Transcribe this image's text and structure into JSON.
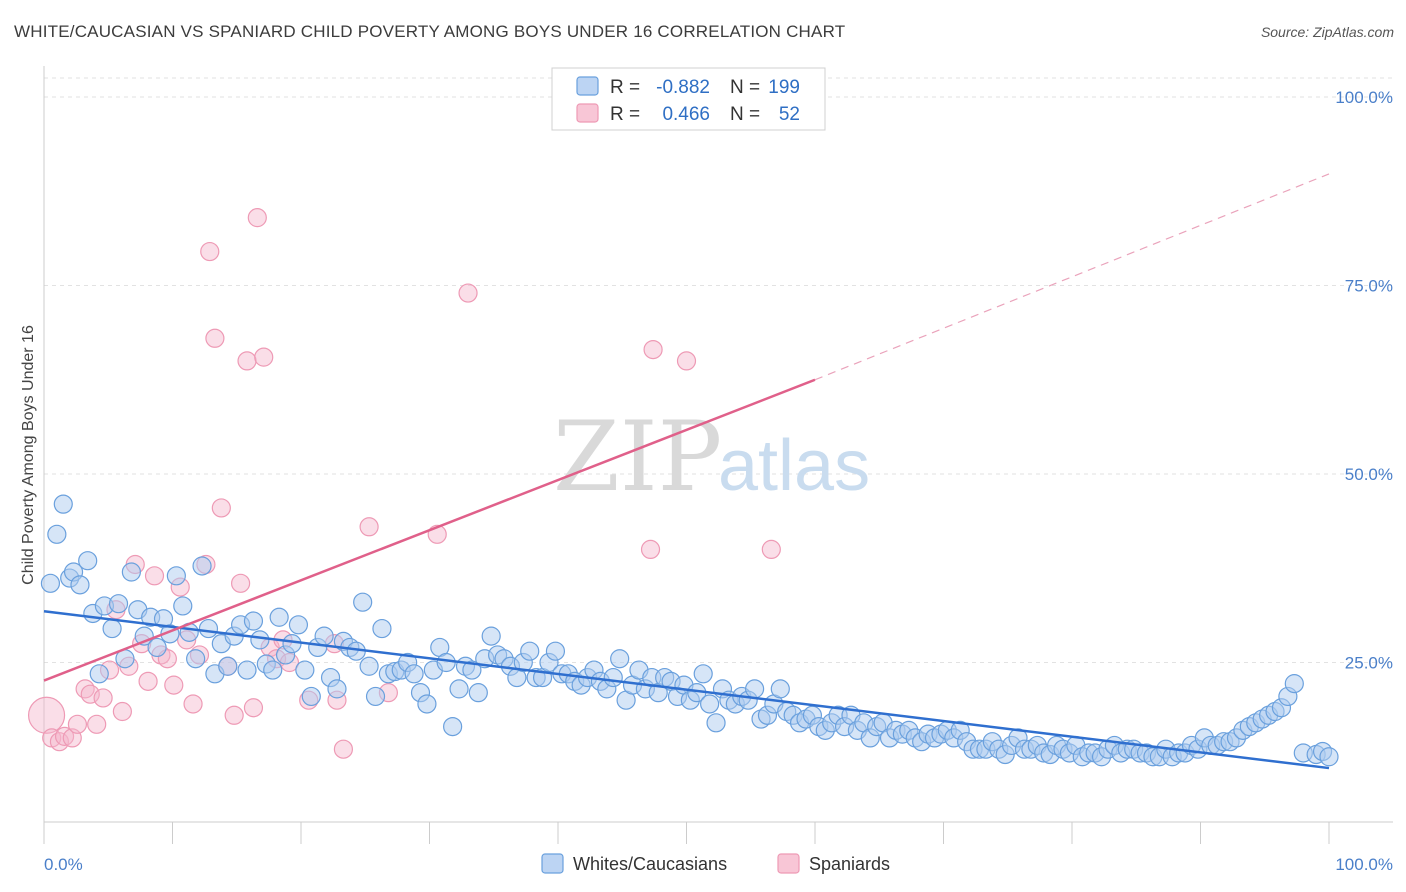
{
  "title": "WHITE/CAUCASIAN VS SPANIARD CHILD POVERTY AMONG BOYS UNDER 16 CORRELATION CHART",
  "source": "Source: ZipAtlas.com",
  "watermark": {
    "zip": "ZIP",
    "atlas": "atlas"
  },
  "colors": {
    "blue": "#6aa0dd",
    "blue_line": "#2f6fcf",
    "pink": "#ee9ab5",
    "pink_line": "#e0608a",
    "tick": "#4a7fc9"
  },
  "legend": {
    "rows": [
      {
        "r_label": "R =",
        "r_value": "-0.882",
        "n_label": "N =",
        "n_value": "199"
      },
      {
        "r_label": "R =",
        "r_value": "0.466",
        "n_label": "N =",
        "n_value": "52"
      }
    ]
  },
  "bottom_legend": {
    "blue": "Whites/Caucasians",
    "pink": "Spaniards"
  },
  "chart_data": {
    "type": "scatter",
    "title": "WHITE/CAUCASIAN VS SPANIARD CHILD POVERTY AMONG BOYS UNDER 16 CORRELATION CHART",
    "xlabel": "",
    "ylabel": "Child Poverty Among Boys Under 16",
    "xlim": [
      0,
      100
    ],
    "ylim": [
      0,
      105
    ],
    "x_tick_labels": [
      "0.0%",
      "100.0%"
    ],
    "y_ticks": [
      25,
      50,
      75,
      100
    ],
    "y_tick_labels": [
      "25.0%",
      "50.0%",
      "75.0%",
      "100.0%"
    ],
    "grid": true,
    "legend_position": "top-center",
    "series": [
      {
        "name": "Whites/Caucasians",
        "color": "#6aa0dd",
        "regression": {
          "x": [
            0,
            100
          ],
          "y": [
            31.8,
            11.0
          ]
        },
        "points": [
          [
            0.5,
            35.5
          ],
          [
            1.0,
            42
          ],
          [
            1.5,
            46
          ],
          [
            2,
            36.2
          ],
          [
            2.3,
            37
          ],
          [
            2.8,
            35.3
          ],
          [
            3.4,
            38.5
          ],
          [
            3.8,
            31.5
          ],
          [
            4.3,
            23.5
          ],
          [
            4.7,
            32.5
          ],
          [
            5.3,
            29.5
          ],
          [
            5.8,
            32.8
          ],
          [
            6.3,
            25.5
          ],
          [
            6.8,
            37
          ],
          [
            7.3,
            32
          ],
          [
            7.8,
            28.5
          ],
          [
            8.3,
            31
          ],
          [
            8.8,
            27
          ],
          [
            9.3,
            30.8
          ],
          [
            9.8,
            28.8
          ],
          [
            10.3,
            36.5
          ],
          [
            10.8,
            32.5
          ],
          [
            11.3,
            29
          ],
          [
            11.8,
            25.5
          ],
          [
            12.3,
            37.8
          ],
          [
            12.8,
            29.5
          ],
          [
            13.3,
            23.5
          ],
          [
            13.8,
            27.5
          ],
          [
            14.3,
            24.5
          ],
          [
            14.8,
            28.5
          ],
          [
            15.3,
            30
          ],
          [
            15.8,
            24
          ],
          [
            16.3,
            30.5
          ],
          [
            16.8,
            28
          ],
          [
            17.3,
            24.8
          ],
          [
            17.8,
            24
          ],
          [
            18.3,
            31
          ],
          [
            18.8,
            26
          ],
          [
            19.3,
            27.5
          ],
          [
            19.8,
            30
          ],
          [
            20.3,
            24
          ],
          [
            20.8,
            20.5
          ],
          [
            21.3,
            27
          ],
          [
            21.8,
            28.5
          ],
          [
            22.3,
            23
          ],
          [
            22.8,
            21.5
          ],
          [
            23.3,
            27.8
          ],
          [
            23.8,
            27
          ],
          [
            24.3,
            26.5
          ],
          [
            24.8,
            33
          ],
          [
            25.3,
            24.5
          ],
          [
            25.8,
            20.5
          ],
          [
            26.3,
            29.5
          ],
          [
            26.8,
            23.5
          ],
          [
            27.3,
            23.8
          ],
          [
            27.8,
            24
          ],
          [
            28.3,
            25
          ],
          [
            28.8,
            23.5
          ],
          [
            29.3,
            21
          ],
          [
            29.8,
            19.5
          ],
          [
            30.3,
            24
          ],
          [
            30.8,
            27
          ],
          [
            31.3,
            25
          ],
          [
            31.8,
            16.5
          ],
          [
            32.3,
            21.5
          ],
          [
            32.8,
            24.5
          ],
          [
            33.3,
            24
          ],
          [
            33.8,
            21
          ],
          [
            34.3,
            25.5
          ],
          [
            34.8,
            28.5
          ],
          [
            35.3,
            26
          ],
          [
            35.8,
            25.5
          ],
          [
            36.3,
            24.5
          ],
          [
            36.8,
            23
          ],
          [
            37.3,
            25
          ],
          [
            37.8,
            26.5
          ],
          [
            38.3,
            23
          ],
          [
            38.8,
            23
          ],
          [
            39.3,
            25
          ],
          [
            39.8,
            26.5
          ],
          [
            40.3,
            23.5
          ],
          [
            40.8,
            23.5
          ],
          [
            41.3,
            22.5
          ],
          [
            41.8,
            22
          ],
          [
            42.3,
            23
          ],
          [
            42.8,
            24
          ],
          [
            43.3,
            22.5
          ],
          [
            43.8,
            21.5
          ],
          [
            44.3,
            23
          ],
          [
            44.8,
            25.5
          ],
          [
            45.3,
            20
          ],
          [
            45.8,
            22
          ],
          [
            46.3,
            24
          ],
          [
            46.8,
            21.5
          ],
          [
            47.3,
            23
          ],
          [
            47.8,
            21
          ],
          [
            48.3,
            23
          ],
          [
            48.8,
            22.5
          ],
          [
            49.3,
            20.5
          ],
          [
            49.8,
            22
          ],
          [
            50.3,
            20
          ],
          [
            50.8,
            21
          ],
          [
            51.3,
            23.5
          ],
          [
            51.8,
            19.5
          ],
          [
            52.3,
            17
          ],
          [
            52.8,
            21.5
          ],
          [
            53.3,
            20
          ],
          [
            53.8,
            19.5
          ],
          [
            54.3,
            20.5
          ],
          [
            54.8,
            20
          ],
          [
            55.3,
            21.5
          ],
          [
            55.8,
            17.5
          ],
          [
            56.3,
            18
          ],
          [
            56.8,
            19.5
          ],
          [
            57.3,
            21.5
          ],
          [
            57.8,
            18.5
          ],
          [
            58.3,
            18
          ],
          [
            58.8,
            17
          ],
          [
            59.3,
            17.5
          ],
          [
            59.8,
            18
          ],
          [
            60.3,
            16.5
          ],
          [
            60.8,
            16
          ],
          [
            61.3,
            17
          ],
          [
            61.8,
            18
          ],
          [
            62.3,
            16.5
          ],
          [
            62.8,
            18
          ],
          [
            63.3,
            16
          ],
          [
            63.8,
            17
          ],
          [
            64.3,
            15
          ],
          [
            64.8,
            16.5
          ],
          [
            65.3,
            17
          ],
          [
            65.8,
            15
          ],
          [
            66.3,
            16
          ],
          [
            66.8,
            15.5
          ],
          [
            67.3,
            16
          ],
          [
            67.8,
            15
          ],
          [
            68.3,
            14.5
          ],
          [
            68.8,
            15.5
          ],
          [
            69.3,
            15
          ],
          [
            69.8,
            15.5
          ],
          [
            70.3,
            16
          ],
          [
            70.8,
            15
          ],
          [
            71.3,
            16
          ],
          [
            71.8,
            14.5
          ],
          [
            72.3,
            13.5
          ],
          [
            72.8,
            13.5
          ],
          [
            73.3,
            13.5
          ],
          [
            73.8,
            14.5
          ],
          [
            74.3,
            13.5
          ],
          [
            74.8,
            12.8
          ],
          [
            75.3,
            14
          ],
          [
            75.8,
            15
          ],
          [
            76.3,
            13.5
          ],
          [
            76.8,
            13.5
          ],
          [
            77.3,
            14
          ],
          [
            77.8,
            13
          ],
          [
            78.3,
            12.8
          ],
          [
            78.8,
            14
          ],
          [
            79.3,
            13.5
          ],
          [
            79.8,
            13
          ],
          [
            80.3,
            14
          ],
          [
            80.8,
            12.5
          ],
          [
            81.3,
            13
          ],
          [
            81.8,
            13
          ],
          [
            82.3,
            12.5
          ],
          [
            82.8,
            13.5
          ],
          [
            83.3,
            14
          ],
          [
            83.8,
            13
          ],
          [
            84.3,
            13.5
          ],
          [
            84.8,
            13.5
          ],
          [
            85.3,
            13
          ],
          [
            85.8,
            13
          ],
          [
            86.3,
            12.5
          ],
          [
            86.8,
            12.5
          ],
          [
            87.3,
            13.5
          ],
          [
            87.8,
            12.5
          ],
          [
            88.3,
            13
          ],
          [
            88.8,
            13
          ],
          [
            89.3,
            14
          ],
          [
            89.8,
            13.5
          ],
          [
            90.3,
            15
          ],
          [
            90.8,
            14
          ],
          [
            91.3,
            14
          ],
          [
            91.8,
            14.5
          ],
          [
            92.3,
            14.5
          ],
          [
            92.8,
            15
          ],
          [
            93.3,
            16
          ],
          [
            93.8,
            16.5
          ],
          [
            94.3,
            17
          ],
          [
            94.8,
            17.5
          ],
          [
            95.3,
            18
          ],
          [
            95.8,
            18.5
          ],
          [
            96.3,
            19
          ],
          [
            96.8,
            20.5
          ],
          [
            97.3,
            22.2
          ],
          [
            98,
            13
          ],
          [
            99,
            12.8
          ],
          [
            99.5,
            13.2
          ],
          [
            100,
            12.5
          ]
        ]
      },
      {
        "name": "Spaniards",
        "color": "#ee9ab5",
        "regression": {
          "x": [
            0,
            60
          ],
          "y": [
            22.6,
            62.5
          ]
        },
        "regression_extension": {
          "x": [
            60,
            100
          ],
          "y": [
            62.5,
            89.8
          ]
        },
        "points": [
          [
            0.2,
            18
          ],
          [
            0.6,
            15
          ],
          [
            1.2,
            14.5
          ],
          [
            1.6,
            15.2
          ],
          [
            2.2,
            15
          ],
          [
            2.6,
            16.8
          ],
          [
            3.2,
            21.5
          ],
          [
            3.6,
            20.8
          ],
          [
            4.1,
            16.8
          ],
          [
            4.6,
            20.3
          ],
          [
            5.1,
            24
          ],
          [
            5.6,
            32
          ],
          [
            6.1,
            18.5
          ],
          [
            6.6,
            24.5
          ],
          [
            7.1,
            38
          ],
          [
            7.6,
            27.5
          ],
          [
            8.1,
            22.5
          ],
          [
            8.6,
            36.5
          ],
          [
            9.1,
            26
          ],
          [
            9.6,
            25.5
          ],
          [
            10.1,
            22
          ],
          [
            10.6,
            35
          ],
          [
            11.1,
            28
          ],
          [
            11.6,
            19.5
          ],
          [
            12.1,
            26
          ],
          [
            12.6,
            38
          ],
          [
            12.9,
            79.5
          ],
          [
            13.3,
            68
          ],
          [
            13.8,
            45.5
          ],
          [
            14.3,
            24.5
          ],
          [
            14.8,
            18
          ],
          [
            15.3,
            35.5
          ],
          [
            15.8,
            65
          ],
          [
            16.3,
            19
          ],
          [
            16.6,
            84
          ],
          [
            17.1,
            65.5
          ],
          [
            17.6,
            27
          ],
          [
            18.1,
            25.5
          ],
          [
            18.6,
            28
          ],
          [
            19.1,
            25
          ],
          [
            20.6,
            20
          ],
          [
            22.6,
            27.5
          ],
          [
            22.8,
            20
          ],
          [
            23.3,
            13.5
          ],
          [
            25.3,
            43
          ],
          [
            26.8,
            21
          ],
          [
            30.6,
            42
          ],
          [
            33,
            74
          ],
          [
            47.2,
            40
          ],
          [
            47.4,
            66.5
          ],
          [
            50,
            65
          ],
          [
            56.6,
            40
          ]
        ]
      }
    ]
  }
}
